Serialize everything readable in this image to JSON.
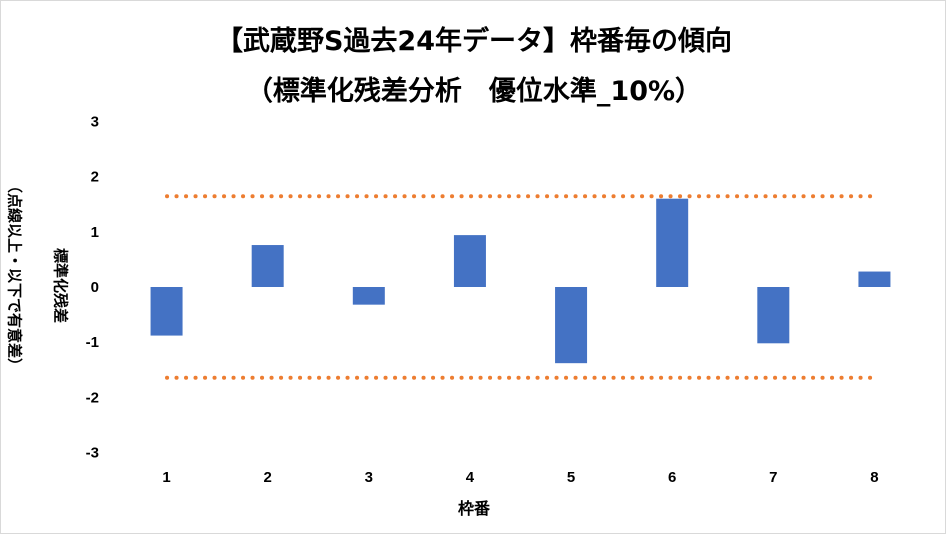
{
  "chart_data": {
    "type": "bar",
    "title": "【武蔵野S過去24年データ】枠番毎の傾向",
    "subtitle": "（標準化残差分析　優位水準_10%）",
    "xlabel": "枠番",
    "ylabel": "標準化残差",
    "ylabel_note": "（点線以上・以下で有意差）",
    "categories": [
      "1",
      "2",
      "3",
      "4",
      "5",
      "6",
      "7",
      "8"
    ],
    "values": [
      -0.88,
      0.76,
      -0.32,
      0.94,
      -1.38,
      1.6,
      -1.02,
      0.28
    ],
    "ylim": [
      -3,
      3
    ],
    "yticks": [
      "3",
      "2",
      "1",
      "0",
      "-1",
      "-2",
      "-3"
    ],
    "threshold_lines": [
      1.645,
      -1.645
    ],
    "grid": false,
    "colors": {
      "bar": "#4472C4",
      "threshold": "#ED7D31"
    }
  }
}
